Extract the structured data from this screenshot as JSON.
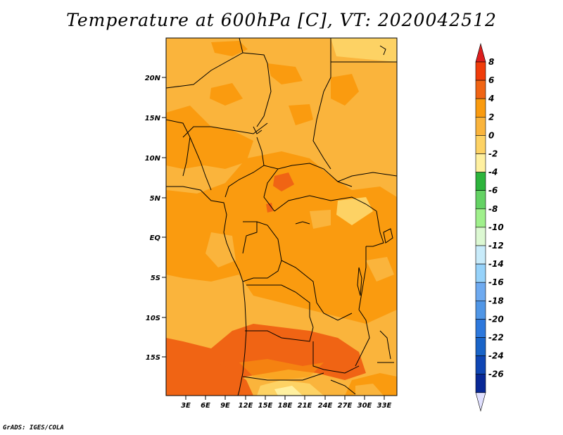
{
  "title": "Temperature at 600hPa [C], VT: 2020042512",
  "footer": "GrADS: IGES/COLA",
  "map": {
    "lat_labels": [
      "20N",
      "15N",
      "10N",
      "5N",
      "EQ",
      "5S",
      "10S",
      "15S"
    ],
    "lon_labels": [
      "3E",
      "6E",
      "9E",
      "12E",
      "15E",
      "18E",
      "21E",
      "24E",
      "27E",
      "30E",
      "33E"
    ]
  },
  "colorbar": {
    "labels": [
      "8",
      "6",
      "4",
      "2",
      "0",
      "-2",
      "-4",
      "-6",
      "-8",
      "-10",
      "-12",
      "-14",
      "-16",
      "-18",
      "-20",
      "-22",
      "-24",
      "-26"
    ],
    "colors": [
      "#dc1e1e",
      "#f03c0a",
      "#f06414",
      "#fa9b0f",
      "#fab43c",
      "#fdd264",
      "#fff0a0",
      "#2db43c",
      "#64d264",
      "#a0f08c",
      "#dcf8d2",
      "#c8ebfa",
      "#96d2fa",
      "#6eaaf0",
      "#5096e6",
      "#2d78dc",
      "#1964c8",
      "#0f46b4",
      "#082896",
      "#08086e"
    ]
  }
}
